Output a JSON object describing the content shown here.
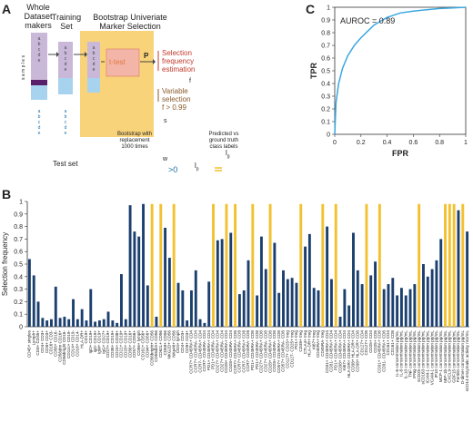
{
  "panels": {
    "a": "A",
    "b": "B",
    "c": "C"
  },
  "workflow": {
    "whole_dataset": "Whole\nDataset\nmakers",
    "training_set": "Training\nSet",
    "bootstrap_title": "Bootstrap Univeriate\nMarker Selection",
    "ttest": "t-test",
    "p_label": "P",
    "selection_freq": "Selection\nfrequency\nestimation",
    "f_label": "f",
    "variable_selection": "Variable\nselection\nf > 0.99",
    "s_label": "s",
    "bootstrap_note": "Bootstrap with\nreplacement\n1000 times",
    "predicted_note": "Predicted vs\nground truth\nclass labels",
    "lg_label": "l",
    "lg_sub": "g",
    "w_label": "w",
    "test_set": "Test set",
    "gt0": ">0",
    "lp_label": "l",
    "lp_sub": "p",
    "eq": "=",
    "markers_abc": "a\nb\nc\nd\ne",
    "sample_label": "s a m p l e s"
  },
  "colors": {
    "purple": "#c9b8d8",
    "purple_dark": "#5a1f6b",
    "blue_light": "#a8d3ef",
    "orange_bg": "#f9d37a",
    "ttest_fill": "#f4b5a9",
    "red_text": "#c0392b",
    "brown_text": "#8a5a2b",
    "navy": "#1b3f6e",
    "gold": "#f2c12e",
    "roc_line": "#3aa7e0"
  },
  "roc": {
    "auroc_text": "AUROC = 0.89",
    "xlabel": "FPR",
    "ylabel": "TPR",
    "x_ticks": [
      "0",
      "0.2",
      "0.4",
      "0.6",
      "0.8",
      "1"
    ],
    "y_ticks": [
      "0",
      "0.1",
      "0.2",
      "0.3",
      "0.4",
      "0.5",
      "0.6",
      "0.7",
      "0.8",
      "0.9",
      "1"
    ]
  },
  "chart_data": [
    {
      "type": "line",
      "xlabel": "FPR",
      "ylabel": "TPR",
      "xlim": [
        0,
        1
      ],
      "ylim": [
        0,
        1
      ],
      "annotation": "AUROC = 0.89",
      "x": [
        0,
        0.01,
        0.03,
        0.06,
        0.1,
        0.15,
        0.2,
        0.25,
        0.3,
        0.35,
        0.4,
        0.5,
        0.6,
        0.7,
        0.8,
        0.9,
        1.0
      ],
      "y": [
        0,
        0.25,
        0.4,
        0.52,
        0.62,
        0.7,
        0.76,
        0.81,
        0.86,
        0.89,
        0.92,
        0.955,
        0.97,
        0.98,
        0.99,
        0.995,
        1.0
      ]
    },
    {
      "type": "bar",
      "ylabel": "Selection frequency",
      "ylim": [
        0,
        1
      ],
      "y_ticks": [
        "0",
        "0.1",
        "0.2",
        "0.3",
        "0.4",
        "0.5",
        "0.6",
        "0.7",
        "0.8",
        "0.9",
        "1"
      ],
      "values": [
        0.54,
        0.41,
        0.2,
        0.07,
        0.05,
        0.06,
        0.32,
        0.07,
        0.08,
        0.06,
        0.22,
        0.06,
        0.14,
        0.05,
        0.3,
        0.04,
        0.05,
        0.06,
        0.12,
        0.05,
        0.03,
        0.42,
        0.06,
        0.97,
        0.76,
        0.72,
        0.98,
        0.33,
        0.98,
        0.08,
        0.98,
        0.79,
        0.55,
        0.98,
        0.35,
        0.29,
        0.05,
        0.29,
        0.45,
        0.06,
        0.03,
        0.36,
        0.98,
        0.69,
        0.7,
        0.98,
        0.75,
        0.98,
        0.26,
        0.29,
        0.53,
        0.98,
        0.25,
        0.72,
        0.46,
        0.98,
        0.67,
        0.27,
        0.45,
        0.38,
        0.39,
        0.35,
        0.98,
        0.64,
        0.74,
        0.31,
        0.29,
        0.98,
        0.8,
        0.38,
        0.98,
        0.08,
        0.3,
        0.17,
        0.75,
        0.45,
        0.34,
        0.98,
        0.41,
        0.52,
        0.98,
        0.3,
        0.34,
        0.39,
        0.25,
        0.31,
        0.25,
        0.3,
        0.34,
        0.98,
        0.5,
        0.4,
        0.46,
        0.53,
        0.7,
        0.98,
        0.98,
        0.98,
        0.93,
        0.98,
        0.76
      ],
      "colors_idx": [
        0,
        0,
        0,
        0,
        0,
        0,
        0,
        0,
        0,
        0,
        0,
        0,
        0,
        0,
        0,
        0,
        0,
        0,
        0,
        0,
        0,
        0,
        0,
        0,
        0,
        0,
        0,
        0,
        1,
        0,
        1,
        0,
        0,
        1,
        0,
        0,
        0,
        0,
        0,
        0,
        0,
        0,
        1,
        0,
        0,
        1,
        0,
        1,
        0,
        0,
        0,
        1,
        0,
        0,
        0,
        1,
        0,
        0,
        0,
        0,
        0,
        0,
        1,
        0,
        0,
        0,
        0,
        1,
        0,
        0,
        1,
        0,
        0,
        0,
        0,
        0,
        0,
        1,
        0,
        0,
        1,
        0,
        0,
        0,
        0,
        0,
        0,
        0,
        0,
        1,
        0,
        0,
        0,
        0,
        0,
        1,
        1,
        1,
        0,
        1,
        0
      ],
      "categories": [
        "CD45+ singles",
        "Lymph+",
        "CD3+ CD45+",
        "CD4+ CD3+",
        "CD8+ CD3+",
        "CD16+ CD3-",
        "CD56+ CD16-",
        "CD56dim CD16+",
        "CD56bright CD16-",
        "CD11c+ CD19-",
        "CD14+ CD19-",
        "CD16+ CD14-",
        "HLA-DR+",
        "CD19+",
        "IgD+ CD19+",
        "IgD- CD19+",
        "IgM+ CD19+",
        "IgG+ CD27+",
        "CD27+ CD19+",
        "CD38+ CD19+",
        "CD24+ CD38+",
        "CD21+ CD19+",
        "CD20+ CD19+",
        "CD56+ CD16+",
        "CD57+ CD56+",
        "CD56+ lymph",
        "CD161+ CD56+",
        "CD94+ CD56+",
        "CD56bright+ CD56",
        "CD56dim+ CD56",
        "CD62L+ CD56",
        "CD69+ CD56",
        "NKG2D+ CD56",
        "NKp46+ CD56",
        "CD3+ lymph",
        "CD4+ CD3+",
        "CD8+ CD3+",
        "CCR7+ CD45RA+ CD4",
        "CCR7+ CD45RA- CD4",
        "CCR7- CD45RA+ CD4",
        "CCR7- CD45RA- CD4",
        "PD1+ CD45RA+ CD4",
        "PD1+ CD45RA- CD4",
        "CD27+ CD45RA+ CD4",
        "CD27+ CD45RA- CD4",
        "CD28+ CD45RA+ CD4",
        "CD28+ CD45RA- CD4",
        "CCR7+ CD45RA+ CD8",
        "CCR7+ CD45RA- CD8",
        "CCR7- CD45RA+ CD8",
        "CCR7- CD45RA- CD8",
        "PD1+ CD45RA+ CD8",
        "PD1+ CD45RA- CD8",
        "CD27+ CD45RA+ CD8",
        "CD27+ CD45RA- CD8",
        "CD28+ CD45RA+ CD8",
        "CD28+ CD45RA- CD8",
        "CD57+ CD45RA+ CD8",
        "CD57+ CD45RA- CD8",
        "CD127+ CD25+ treg",
        "CD127- CD25+ treg",
        "PD1+ treg",
        "CD39+ treg",
        "CTLA4+ treg",
        "HLA-DR+ treg",
        "Ki67+ treg",
        "CD45RA+ treg",
        "CD45RA- treg",
        "CD31+ CD45RA+ CD4",
        "CD31- CD45RA+ CD4",
        "PD1+ CD45RA+ CD4",
        "CD38+ CD45RA+ CD4",
        "Ki67+ CD45RA+ CD4",
        "HLA-DR+ CD45RA+ CD4",
        "CD38+ HLA-DR+ CD4",
        "CD38+ HLA-DR+ CD8",
        "CD127+ CD4",
        "CD127+ CD8",
        "CD25+ CD4",
        "CD25+ CD8",
        "CD31+ CD45RA+ CD8",
        "CD31- CD45RA+ CD8",
        "CD161+ CD4",
        "CD161+ CD8",
        "IL-6 concentration pg/mL",
        "IL-8 concentration pg/mL",
        "IL-10 concentration pg/mL",
        "TNF concentration pg/mL",
        "IFNg concentration pg/mL",
        "sCD25 concentration pg/mL",
        "sCD163 concentration pg/mL",
        "ICAM-1 concentration pg/mL",
        "VCAM-1 concentration pg/mL",
        "IP10 concentration pg/mL",
        "MCP-1 concentration pg/mL",
        "MIP-1b concentration pg/mL",
        "CXCL9 concentration pg/mL",
        "GDF15 concentration pg/mL",
        "Ferritin concentration pg/mL",
        "D-dimer concentration pg/mL",
        "sCD14 enzymatic activity mU/mL"
      ]
    }
  ]
}
